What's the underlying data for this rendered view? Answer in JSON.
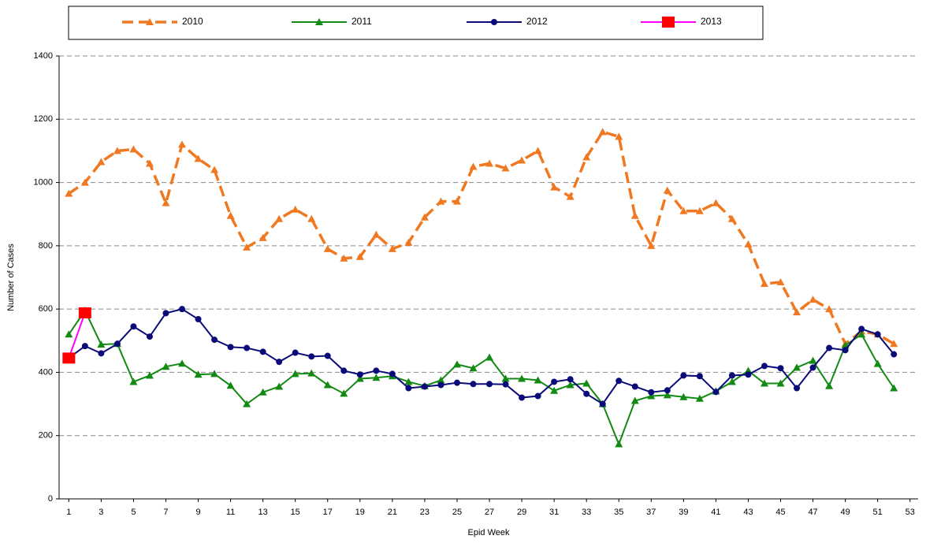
{
  "chart_data": {
    "type": "line",
    "xlabel": "Epid Week",
    "ylabel": "Number of Cases",
    "x": [
      1,
      2,
      3,
      4,
      5,
      6,
      7,
      8,
      9,
      10,
      11,
      12,
      13,
      14,
      15,
      16,
      17,
      18,
      19,
      20,
      21,
      22,
      23,
      24,
      25,
      26,
      27,
      28,
      29,
      30,
      31,
      32,
      33,
      34,
      35,
      36,
      37,
      38,
      39,
      40,
      41,
      42,
      43,
      44,
      45,
      46,
      47,
      48,
      49,
      50,
      51,
      52
    ],
    "series": [
      {
        "name": "2010",
        "color": "#f07820",
        "marker": "triangle",
        "line_style": "dashed",
        "values": [
          965,
          1000,
          1065,
          1100,
          1105,
          1060,
          935,
          1120,
          1075,
          1040,
          895,
          795,
          825,
          885,
          915,
          885,
          790,
          760,
          765,
          835,
          790,
          810,
          890,
          940,
          940,
          1050,
          1060,
          1045,
          1070,
          1100,
          985,
          955,
          1080,
          1160,
          1145,
          895,
          800,
          975,
          910,
          910,
          935,
          885,
          805,
          680,
          685,
          590,
          630,
          600,
          490,
          530,
          520,
          490
        ]
      },
      {
        "name": "2011",
        "color": "#138a13",
        "marker": "triangle",
        "line_style": "solid",
        "values": [
          520,
          595,
          488,
          490,
          370,
          390,
          418,
          428,
          393,
          395,
          358,
          300,
          337,
          355,
          395,
          397,
          360,
          333,
          380,
          383,
          388,
          370,
          357,
          375,
          425,
          413,
          447,
          380,
          380,
          375,
          342,
          360,
          365,
          300,
          173,
          310,
          325,
          328,
          322,
          317,
          340,
          370,
          405,
          365,
          365,
          415,
          437,
          357,
          485,
          520,
          427,
          350
        ]
      },
      {
        "name": "2012",
        "color": "#0a0a78",
        "marker": "circle",
        "line_style": "solid",
        "values": [
          445,
          483,
          460,
          490,
          545,
          513,
          587,
          600,
          568,
          503,
          480,
          477,
          465,
          433,
          462,
          450,
          452,
          405,
          393,
          405,
          395,
          350,
          355,
          360,
          367,
          363,
          363,
          362,
          320,
          325,
          370,
          378,
          332,
          300,
          373,
          355,
          337,
          343,
          390,
          388,
          338,
          390,
          393,
          420,
          413,
          350,
          415,
          477,
          470,
          537,
          520,
          457
        ]
      },
      {
        "name": "2013",
        "color": "#ff00ff",
        "marker": "square",
        "marker_color": "#ff0000",
        "line_style": "solid",
        "values": [
          445,
          588,
          null,
          null,
          null,
          null,
          null,
          null,
          null,
          null,
          null,
          null,
          null,
          null,
          null,
          null,
          null,
          null,
          null,
          null,
          null,
          null,
          null,
          null,
          null,
          null,
          null,
          null,
          null,
          null,
          null,
          null,
          null,
          null,
          null,
          null,
          null,
          null,
          null,
          null,
          null,
          null,
          null,
          null,
          null,
          null,
          null,
          null,
          null,
          null,
          null,
          null
        ]
      }
    ],
    "xlim": [
      0.4,
      53.5
    ],
    "xticks": [
      1,
      3,
      5,
      7,
      9,
      11,
      13,
      15,
      17,
      19,
      21,
      23,
      25,
      27,
      29,
      31,
      33,
      35,
      37,
      39,
      41,
      43,
      45,
      47,
      49,
      51,
      53
    ],
    "ylim": [
      0,
      1400
    ],
    "yticks": [
      0,
      200,
      400,
      600,
      800,
      1000,
      1200,
      1400
    ],
    "grid": true,
    "legend": "top"
  }
}
